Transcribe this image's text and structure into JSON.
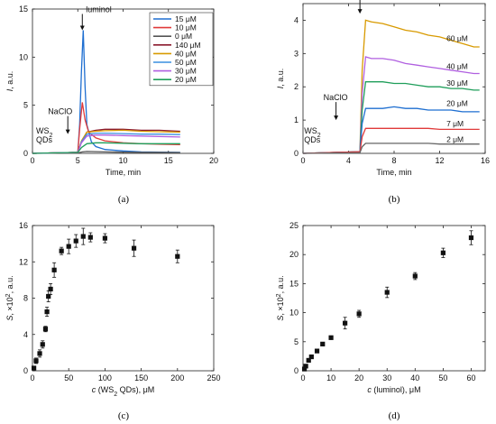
{
  "figure": {
    "panels": [
      {
        "label": "(a)"
      },
      {
        "label": "(b)"
      },
      {
        "label": "(c)"
      },
      {
        "label": "(d)"
      }
    ]
  },
  "chart_data": [
    {
      "type": "line",
      "xlabel": "Time, min",
      "ylabel_var": "I",
      "ylabel_unit": ", a.u.",
      "xlim": [
        0,
        20
      ],
      "ylim": [
        0,
        15
      ],
      "xticks": [
        0,
        5,
        10,
        15,
        20
      ],
      "yticks": [
        0,
        5,
        10,
        15
      ],
      "grid": false,
      "legend_position": "top-right",
      "annotations": [
        {
          "text": "luminol",
          "x": 5.5,
          "y": 12.8
        },
        {
          "text": "NaClO",
          "x": 3.9,
          "y": 2.0
        },
        {
          "text_main": "WS",
          "text_sub": "2",
          "text_line2": "QDs",
          "x": 0.4,
          "y": 0.2
        }
      ],
      "series": [
        {
          "name": "15 μM",
          "color": "#1f6fd1",
          "x": [
            0,
            5.0,
            5.2,
            5.4,
            5.6,
            5.8,
            6.0,
            6.5,
            7,
            8,
            10,
            12,
            14,
            16.3
          ],
          "y": [
            0,
            0.1,
            3.0,
            8.5,
            12.8,
            7.0,
            3.0,
            1.2,
            0.7,
            0.4,
            0.25,
            0.15,
            0.12,
            0.1
          ]
        },
        {
          "name": "10 μM",
          "color": "#e03a3a",
          "x": [
            0,
            5.0,
            5.2,
            5.5,
            5.8,
            6.2,
            7,
            8,
            10,
            12,
            14,
            16.3
          ],
          "y": [
            0,
            0.1,
            2.5,
            5.3,
            3.5,
            2.2,
            1.6,
            1.3,
            1.1,
            1.0,
            0.95,
            0.9
          ]
        },
        {
          "name": "0 μM",
          "color": "#555555",
          "x": [
            0,
            5.0,
            5.5,
            6,
            8,
            10,
            12,
            14,
            16.3
          ],
          "y": [
            0,
            0.05,
            0.15,
            0.2,
            0.15,
            0.12,
            0.1,
            0.1,
            0.08
          ]
        },
        {
          "name": "140 μM",
          "color": "#8b1a2e",
          "x": [
            0,
            5.0,
            5.4,
            6.0,
            7,
            8,
            10,
            12,
            14,
            16.3
          ],
          "y": [
            0,
            0.1,
            1.2,
            2.2,
            2.4,
            2.5,
            2.5,
            2.4,
            2.4,
            2.3
          ]
        },
        {
          "name": "40 μM",
          "color": "#d89a00",
          "x": [
            0,
            5.0,
            5.4,
            6.0,
            7,
            8,
            10,
            12,
            14,
            16.3
          ],
          "y": [
            0,
            0.1,
            1.3,
            2.2,
            2.3,
            2.35,
            2.4,
            2.3,
            2.25,
            2.2
          ]
        },
        {
          "name": "50 μM",
          "color": "#3a8fe0",
          "x": [
            0,
            5.0,
            5.4,
            6.0,
            7,
            8,
            10,
            12,
            14,
            16.3
          ],
          "y": [
            0,
            0.1,
            1.2,
            2.0,
            2.1,
            2.1,
            2.05,
            2.0,
            2.0,
            1.95
          ]
        },
        {
          "name": "30 μM",
          "color": "#b05fe0",
          "x": [
            0,
            5.0,
            5.4,
            6.0,
            7,
            8,
            10,
            12,
            14,
            16.3
          ],
          "y": [
            0,
            0.1,
            1.1,
            1.8,
            1.9,
            1.9,
            1.85,
            1.8,
            1.75,
            1.7
          ]
        },
        {
          "name": "20 μM",
          "color": "#1f9e5a",
          "x": [
            0,
            5.0,
            5.4,
            6.0,
            7,
            8,
            10,
            12,
            14,
            16.3
          ],
          "y": [
            0,
            0.1,
            0.6,
            1.0,
            1.1,
            1.1,
            1.05,
            1.0,
            1.0,
            1.0
          ]
        }
      ]
    },
    {
      "type": "line",
      "xlabel": "Time, min",
      "ylabel_var": "I",
      "ylabel_unit": ", a.u.",
      "xlim": [
        0,
        16
      ],
      "ylim": [
        0,
        4.5
      ],
      "xticks": [
        0,
        4,
        8,
        12,
        16
      ],
      "yticks": [
        0,
        1,
        2,
        3,
        4
      ],
      "grid": false,
      "annotations": [
        {
          "text": "luminol",
          "x": 5.0,
          "y": 4.2
        },
        {
          "text": "NaClO",
          "x": 2.9,
          "y": 1.0
        },
        {
          "text_main": "WS",
          "text_sub": "2",
          "text_line2": "QDs",
          "x": 0.1,
          "y": 0.2
        }
      ],
      "series": [
        {
          "name": "60 μM",
          "color": "#d89a00",
          "x": [
            0,
            5.0,
            5.2,
            5.5,
            6,
            7,
            8,
            9,
            10,
            11,
            12,
            13,
            14,
            15,
            15.5
          ],
          "y": [
            0,
            0.05,
            2.5,
            4.0,
            3.95,
            3.9,
            3.8,
            3.7,
            3.65,
            3.55,
            3.5,
            3.4,
            3.3,
            3.2,
            3.2
          ]
        },
        {
          "name": "40 μM",
          "color": "#b05fe0",
          "x": [
            0,
            5.0,
            5.2,
            5.5,
            6,
            7,
            8,
            9,
            10,
            11,
            12,
            13,
            14,
            15,
            15.5
          ],
          "y": [
            0,
            0.05,
            1.8,
            2.9,
            2.85,
            2.85,
            2.8,
            2.7,
            2.65,
            2.6,
            2.55,
            2.5,
            2.45,
            2.4,
            2.4
          ]
        },
        {
          "name": "30 μM",
          "color": "#1f9e5a",
          "x": [
            0,
            5.0,
            5.2,
            5.5,
            6,
            7,
            8,
            9,
            10,
            11,
            12,
            13,
            14,
            15,
            15.5
          ],
          "y": [
            0,
            0.05,
            1.3,
            2.15,
            2.15,
            2.15,
            2.1,
            2.1,
            2.05,
            2.0,
            2.0,
            1.95,
            1.95,
            1.9,
            1.9
          ]
        },
        {
          "name": "20 μM",
          "color": "#1f6fd1",
          "x": [
            0,
            5.0,
            5.2,
            5.5,
            6,
            7,
            8,
            9,
            10,
            11,
            12,
            13,
            14,
            15,
            15.5
          ],
          "y": [
            0,
            0.05,
            0.9,
            1.35,
            1.35,
            1.35,
            1.4,
            1.35,
            1.35,
            1.3,
            1.3,
            1.3,
            1.25,
            1.25,
            1.25
          ]
        },
        {
          "name": "7 μM",
          "color": "#e03a3a",
          "x": [
            0,
            5.0,
            5.2,
            5.5,
            6,
            7,
            8,
            9,
            10,
            11,
            12,
            13,
            14,
            15,
            15.5
          ],
          "y": [
            0,
            0.05,
            0.5,
            0.75,
            0.75,
            0.75,
            0.75,
            0.75,
            0.75,
            0.75,
            0.72,
            0.72,
            0.72,
            0.72,
            0.72
          ]
        },
        {
          "name": "2 μM",
          "color": "#666666",
          "x": [
            0,
            5.0,
            5.2,
            5.5,
            6,
            7,
            8,
            9,
            10,
            11,
            12,
            13,
            14,
            15,
            15.5
          ],
          "y": [
            0,
            0.02,
            0.2,
            0.3,
            0.3,
            0.3,
            0.3,
            0.3,
            0.3,
            0.3,
            0.28,
            0.28,
            0.28,
            0.28,
            0.28
          ]
        }
      ]
    },
    {
      "type": "scatter",
      "xlabel_main": "c",
      "xlabel_rest_1": " (WS",
      "xlabel_sub": "2",
      "xlabel_rest_2": " QDs), μM",
      "ylabel_main": "S",
      "ylabel_rest": ", ×10",
      "ylabel_sup": "2",
      "ylabel_tail": ", a.u.",
      "xlim": [
        0,
        250
      ],
      "ylim": [
        0,
        16
      ],
      "xticks": [
        0,
        50,
        100,
        150,
        200,
        250
      ],
      "yticks": [
        0,
        4,
        8,
        12,
        16
      ],
      "grid": false,
      "marker": "square",
      "color": "#111111",
      "points": [
        {
          "x": 2,
          "y": 0.3,
          "err": 0.2
        },
        {
          "x": 5,
          "y": 1.1,
          "err": 0.3
        },
        {
          "x": 10,
          "y": 1.9,
          "err": 0.4
        },
        {
          "x": 14,
          "y": 2.9,
          "err": 0.4
        },
        {
          "x": 18,
          "y": 4.6,
          "err": 0.3
        },
        {
          "x": 20,
          "y": 6.5,
          "err": 0.5
        },
        {
          "x": 22,
          "y": 8.2,
          "err": 0.6
        },
        {
          "x": 25,
          "y": 9.0,
          "err": 0.6
        },
        {
          "x": 30,
          "y": 11.1,
          "err": 0.8
        },
        {
          "x": 40,
          "y": 13.2,
          "err": 0.4
        },
        {
          "x": 50,
          "y": 13.7,
          "err": 0.8
        },
        {
          "x": 60,
          "y": 14.3,
          "err": 0.7
        },
        {
          "x": 70,
          "y": 14.8,
          "err": 0.9
        },
        {
          "x": 80,
          "y": 14.7,
          "err": 0.5
        },
        {
          "x": 100,
          "y": 14.6,
          "err": 0.5
        },
        {
          "x": 140,
          "y": 13.5,
          "err": 0.9
        },
        {
          "x": 200,
          "y": 12.6,
          "err": 0.7
        }
      ]
    },
    {
      "type": "scatter",
      "xlabel_main": "c",
      "xlabel_rest_1": " (luminol), μM",
      "ylabel_main": "S",
      "ylabel_rest": ", ×10",
      "ylabel_sup": "2",
      "ylabel_tail": ", a.u.",
      "xlim": [
        0,
        65
      ],
      "ylim": [
        0,
        25
      ],
      "xticks": [
        0,
        10,
        20,
        30,
        40,
        50,
        60
      ],
      "yticks": [
        0,
        5,
        10,
        15,
        20,
        25
      ],
      "grid": false,
      "marker": "square",
      "color": "#111111",
      "points": [
        {
          "x": 0.5,
          "y": 0.3,
          "err": 0.2
        },
        {
          "x": 1,
          "y": 0.8,
          "err": 0.2
        },
        {
          "x": 2,
          "y": 1.8,
          "err": 0.3
        },
        {
          "x": 3,
          "y": 2.4,
          "err": 0.2
        },
        {
          "x": 5,
          "y": 3.4,
          "err": 0.3
        },
        {
          "x": 7,
          "y": 4.6,
          "err": 0.3
        },
        {
          "x": 10,
          "y": 5.7,
          "err": 0.3
        },
        {
          "x": 15,
          "y": 8.2,
          "err": 1.0
        },
        {
          "x": 20,
          "y": 9.8,
          "err": 0.6
        },
        {
          "x": 30,
          "y": 13.5,
          "err": 0.9
        },
        {
          "x": 40,
          "y": 16.3,
          "err": 0.6
        },
        {
          "x": 50,
          "y": 20.3,
          "err": 0.8
        },
        {
          "x": 60,
          "y": 22.9,
          "err": 1.2
        }
      ]
    }
  ]
}
